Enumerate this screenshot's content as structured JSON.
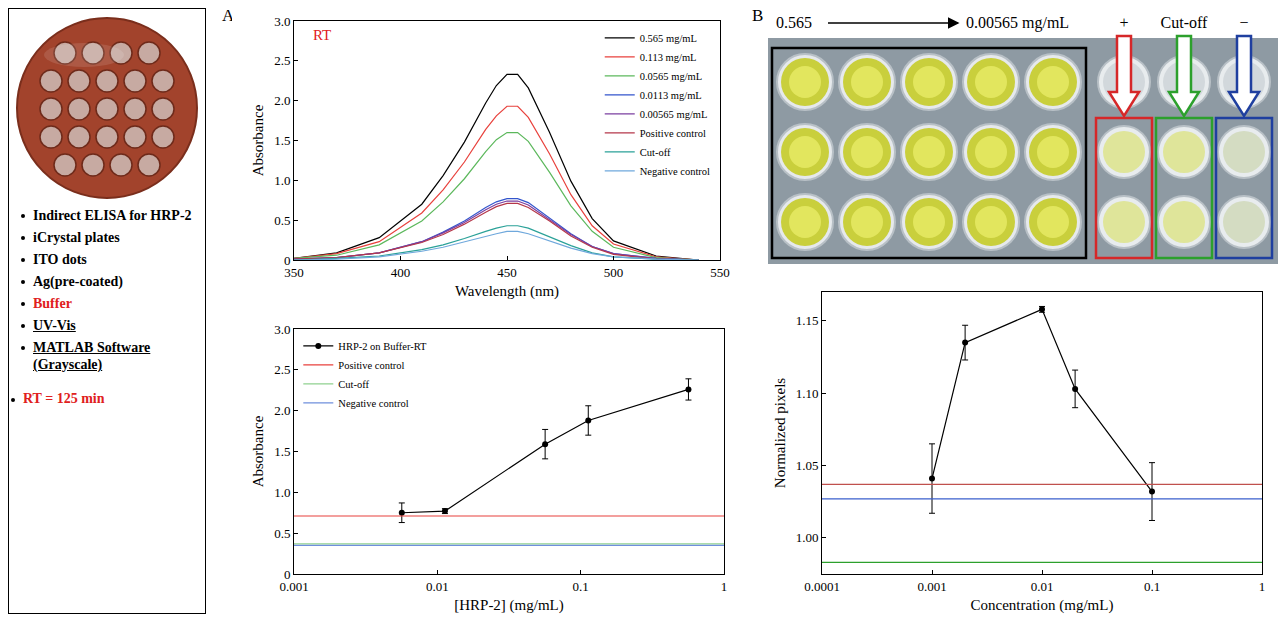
{
  "left_panel": {
    "items": [
      {
        "text": "Indirect ELISA for HRP-2"
      },
      {
        "text": "iCrystal plates"
      },
      {
        "text": "ITO dots"
      },
      {
        "text": "Ag(pre-coated)"
      },
      {
        "text": "Buffer",
        "color": "#e02020"
      },
      {
        "text": "UV-Vis",
        "style": "underline"
      },
      {
        "text": "MATLAB Software (Grayscale)",
        "style": "underline"
      }
    ],
    "note": {
      "text": "RT = 125 min",
      "color": "#e02020"
    }
  },
  "panel_letters": [
    "A",
    "B"
  ],
  "plate": {
    "range_start": "0.565",
    "range_end": "0.00565 mg/mL",
    "controls": [
      {
        "label": "+",
        "color": "#d62728"
      },
      {
        "label": "Cut-off",
        "color": "#2ca02c"
      },
      {
        "label": "−",
        "color": "#1f3f9f"
      }
    ]
  },
  "chart_data": [
    {
      "type": "line",
      "xlabel": "Wavelength (nm)",
      "ylabel": "Absorbance",
      "x": [
        350,
        370,
        390,
        410,
        420,
        430,
        440,
        445,
        450,
        455,
        460,
        470,
        480,
        490,
        500,
        520,
        540
      ],
      "series": [
        {
          "name": "0.565 mg/mL",
          "color": "#000000",
          "values": [
            0.02,
            0.09,
            0.28,
            0.7,
            1.06,
            1.48,
            1.97,
            2.19,
            2.33,
            2.33,
            2.16,
            1.6,
            0.99,
            0.52,
            0.24,
            0.05,
            0.0
          ]
        },
        {
          "name": "0.113 mg/mL",
          "color": "#e8413c",
          "values": [
            0.02,
            0.08,
            0.23,
            0.59,
            0.88,
            1.23,
            1.64,
            1.81,
            1.93,
            1.93,
            1.79,
            1.33,
            0.82,
            0.43,
            0.2,
            0.04,
            0.0
          ]
        },
        {
          "name": "0.0565 mg/mL",
          "color": "#5cb85c",
          "values": [
            0.02,
            0.06,
            0.19,
            0.49,
            0.73,
            1.02,
            1.36,
            1.51,
            1.6,
            1.6,
            1.49,
            1.1,
            0.68,
            0.36,
            0.16,
            0.03,
            0.0
          ]
        },
        {
          "name": "0.0113 mg/mL",
          "color": "#3355cc",
          "values": [
            0.01,
            0.03,
            0.09,
            0.23,
            0.35,
            0.49,
            0.66,
            0.73,
            0.77,
            0.77,
            0.72,
            0.53,
            0.33,
            0.17,
            0.08,
            0.02,
            0.0
          ]
        },
        {
          "name": "0.00565 mg/mL",
          "color": "#7b3fa0",
          "values": [
            0.01,
            0.03,
            0.09,
            0.23,
            0.34,
            0.47,
            0.63,
            0.7,
            0.74,
            0.74,
            0.69,
            0.51,
            0.32,
            0.17,
            0.08,
            0.02,
            0.0
          ]
        },
        {
          "name": "Positive control",
          "color": "#b5374a",
          "values": [
            0.01,
            0.03,
            0.09,
            0.22,
            0.32,
            0.45,
            0.6,
            0.67,
            0.71,
            0.71,
            0.66,
            0.49,
            0.3,
            0.16,
            0.07,
            0.01,
            0.0
          ]
        },
        {
          "name": "Cut-off",
          "color": "#2aa198",
          "values": [
            0.0,
            0.02,
            0.05,
            0.13,
            0.19,
            0.27,
            0.36,
            0.4,
            0.43,
            0.43,
            0.4,
            0.29,
            0.18,
            0.09,
            0.04,
            0.01,
            0.0
          ]
        },
        {
          "name": "Negative control",
          "color": "#6fa8dc",
          "values": [
            0.0,
            0.01,
            0.04,
            0.11,
            0.16,
            0.23,
            0.3,
            0.33,
            0.36,
            0.36,
            0.33,
            0.24,
            0.15,
            0.08,
            0.04,
            0.01,
            0.0
          ]
        }
      ],
      "xlim": [
        350,
        550
      ],
      "xticks": [
        350,
        400,
        450,
        500,
        550
      ],
      "ylim": [
        0,
        3
      ],
      "yticks": [
        0,
        0.5,
        {
          "value": 1,
          "label": "1.0"
        },
        {
          "value": 1.5,
          "label": "1.5"
        },
        {
          "value": 2,
          "label": "2.0"
        },
        {
          "value": 2.5,
          "label": "2.5"
        },
        {
          "value": 3,
          "label": "3.0"
        }
      ],
      "annotations": [
        {
          "text": "RT",
          "x": 358,
          "y": 2.82,
          "color": "#e02020"
        }
      ],
      "legend": "upper right",
      "grid": false
    },
    {
      "type": "line",
      "xlabel": "[HRP-2] (mg/mL)",
      "ylabel": "Absorbance",
      "log": "x",
      "series": [
        {
          "name": "HRP-2 on Buffer-RT",
          "color": "#000000",
          "marker": "circle",
          "line_style": "solid",
          "x": [
            0.00565,
            0.0113,
            0.0565,
            0.113,
            0.565
          ],
          "values": [
            0.75,
            0.77,
            1.59,
            1.88,
            2.26
          ],
          "errors": [
            0.12,
            0.03,
            0.18,
            0.18,
            0.13
          ]
        },
        {
          "name": "Positive control",
          "color": "#e8413c",
          "marker": "none",
          "line_style": "solid",
          "x": [
            0.001,
            1
          ],
          "values": [
            0.71,
            0.71
          ]
        },
        {
          "name": "Cut-off",
          "color": "#8fd18f",
          "marker": "none",
          "line_style": "solid",
          "x": [
            0.001,
            1
          ],
          "values": [
            0.37,
            0.37
          ]
        },
        {
          "name": "Negative control",
          "color": "#6f8fdc",
          "marker": "none",
          "line_style": "solid",
          "x": [
            0.001,
            1
          ],
          "values": [
            0.35,
            0.35
          ]
        }
      ],
      "xlim": [
        0.001,
        1
      ],
      "xticks": [
        0.001,
        0.01,
        0.1,
        1
      ],
      "ylim": [
        0,
        3
      ],
      "yticks": [
        0,
        0.5,
        {
          "value": 1,
          "label": "1.0"
        },
        {
          "value": 1.5,
          "label": "1.5"
        },
        {
          "value": 2,
          "label": "2.0"
        },
        {
          "value": 2.5,
          "label": "2.5"
        },
        {
          "value": 3,
          "label": "3.0"
        }
      ],
      "legend": "upper left",
      "grid": false
    },
    {
      "type": "line",
      "xlabel": "Concentration (mg/mL)",
      "ylabel": "Normalized pixels",
      "log": "x",
      "series": [
        {
          "color": "#000000",
          "marker": "circle",
          "line_style": "solid",
          "x": [
            0.001,
            0.002,
            0.01,
            0.02,
            0.1
          ],
          "values": [
            1.041,
            1.135,
            1.158,
            1.103,
            1.032
          ],
          "errors": [
            0.024,
            0.012,
            0.002,
            0.013,
            0.02
          ]
        },
        {
          "color": "#c0504d",
          "marker": "none",
          "line_style": "solid",
          "x": [
            0.0001,
            1
          ],
          "values": [
            1.037,
            1.037
          ]
        },
        {
          "color": "#3a5fcd",
          "marker": "none",
          "line_style": "solid",
          "x": [
            0.0001,
            1
          ],
          "values": [
            1.027,
            1.027
          ]
        },
        {
          "color": "#2ca02c",
          "marker": "none",
          "line_style": "solid",
          "x": [
            0.0001,
            1
          ],
          "values": [
            0.983,
            0.983
          ]
        }
      ],
      "xlim": [
        0.0001,
        1
      ],
      "xticks": [
        0.0001,
        0.001,
        0.01,
        0.1,
        1
      ],
      "ylim": [
        0.975,
        1.17
      ],
      "yticks": [
        {
          "value": 1.0,
          "label": "1.00"
        },
        {
          "value": 1.05,
          "label": "1.05"
        },
        {
          "value": 1.1,
          "label": "1.10"
        },
        {
          "value": 1.15,
          "label": "1.15"
        }
      ],
      "legend": false,
      "grid": false
    }
  ]
}
